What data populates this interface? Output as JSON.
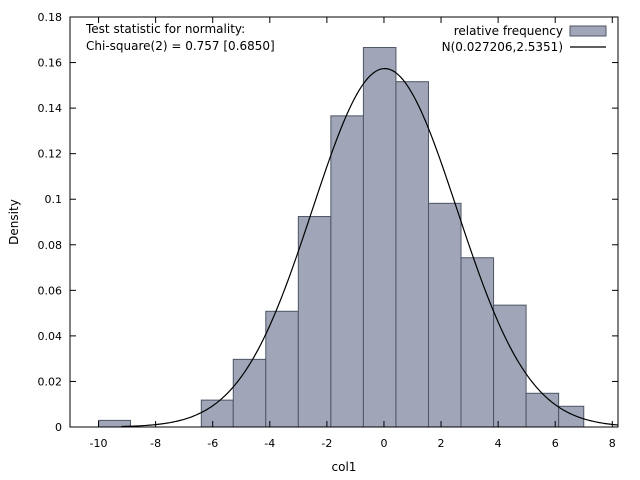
{
  "chart_data": {
    "type": "bar",
    "xlabel": "col1",
    "ylabel": "Density",
    "xlim": [
      -11,
      8.2
    ],
    "ylim": [
      0,
      0.18
    ],
    "grid": false,
    "legend_position": "top-right",
    "x_ticks": [
      {
        "value": -10,
        "label": "-10"
      },
      {
        "value": -8,
        "label": "-8"
      },
      {
        "value": -6,
        "label": "-6"
      },
      {
        "value": -4,
        "label": "-4"
      },
      {
        "value": -2,
        "label": "-2"
      },
      {
        "value": 0,
        "label": "0"
      },
      {
        "value": 2,
        "label": "2"
      },
      {
        "value": 4,
        "label": "4"
      },
      {
        "value": 6,
        "label": "6"
      },
      {
        "value": 8,
        "label": "8"
      }
    ],
    "y_ticks": [
      {
        "value": 0,
        "label": "0"
      },
      {
        "value": 0.02,
        "label": "0.02"
      },
      {
        "value": 0.04,
        "label": "0.04"
      },
      {
        "value": 0.06,
        "label": "0.06"
      },
      {
        "value": 0.08,
        "label": "0.08"
      },
      {
        "value": 0.1,
        "label": "0.1"
      },
      {
        "value": 0.12,
        "label": "0.12"
      },
      {
        "value": 0.14,
        "label": "0.14"
      },
      {
        "value": 0.16,
        "label": "0.16"
      },
      {
        "value": 0.18,
        "label": "0.18"
      }
    ],
    "histogram": {
      "name": "relative frequency",
      "color": "#a0a6b8",
      "edge_color": "#4d5566",
      "bins": [
        {
          "x0": -10.0,
          "x1": -8.88,
          "value": 0.0029
        },
        {
          "x0": -6.4,
          "x1": -5.28,
          "value": 0.0118
        },
        {
          "x0": -5.28,
          "x1": -4.14,
          "value": 0.0297
        },
        {
          "x0": -4.14,
          "x1": -3.0,
          "value": 0.0508
        },
        {
          "x0": -3.0,
          "x1": -1.86,
          "value": 0.0924
        },
        {
          "x0": -1.86,
          "x1": -0.72,
          "value": 0.1366
        },
        {
          "x0": -0.72,
          "x1": 0.42,
          "value": 0.1666
        },
        {
          "x0": 0.42,
          "x1": 1.56,
          "value": 0.1516
        },
        {
          "x0": 1.56,
          "x1": 2.7,
          "value": 0.0982
        },
        {
          "x0": 2.7,
          "x1": 3.84,
          "value": 0.0743
        },
        {
          "x0": 3.84,
          "x1": 4.98,
          "value": 0.0535
        },
        {
          "x0": 4.98,
          "x1": 6.12,
          "value": 0.0148
        },
        {
          "x0": 6.12,
          "x1": 7.0,
          "value": 0.0091
        }
      ]
    },
    "curve": {
      "name": "N(0.027206,2.5351)",
      "mean": 0.027206,
      "sd": 2.5351,
      "x_range": [
        -9.2,
        8.2
      ],
      "color": "#000000"
    },
    "annotations": [
      "Test statistic for normality:",
      "Chi-square(2) = 0.757 [0.6850]"
    ]
  }
}
